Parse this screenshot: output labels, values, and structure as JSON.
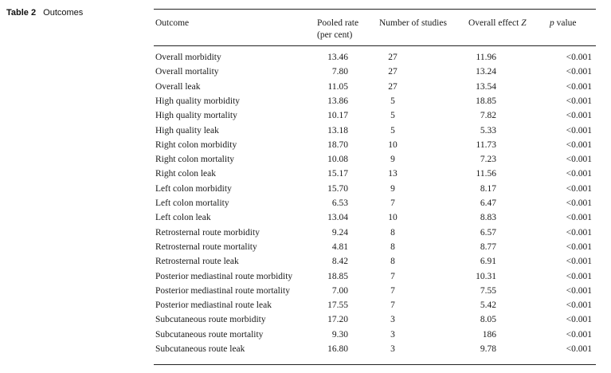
{
  "caption": {
    "label": "Table 2",
    "title": "Outcomes"
  },
  "headers": {
    "outcome": "Outcome",
    "pooled_line1": "Pooled rate",
    "pooled_line2": "(per cent)",
    "studies": "Number of studies",
    "effect_prefix": "Overall effect ",
    "effect_symbol": "Z",
    "p_symbol": "p",
    "p_suffix": " value"
  },
  "rows": [
    {
      "outcome": "Overall morbidity",
      "rate": "13.46",
      "studies": "27",
      "z": "11.96",
      "p": "<0.001"
    },
    {
      "outcome": "Overall mortality",
      "rate": "7.80",
      "studies": "27",
      "z": "13.24",
      "p": "<0.001"
    },
    {
      "outcome": "Overall leak",
      "rate": "11.05",
      "studies": "27",
      "z": "13.54",
      "p": "<0.001"
    },
    {
      "outcome": "High quality morbidity",
      "rate": "13.86",
      "studies": "5",
      "z": "18.85",
      "p": "<0.001"
    },
    {
      "outcome": "High quality mortality",
      "rate": "10.17",
      "studies": "5",
      "z": "7.82",
      "p": "<0.001"
    },
    {
      "outcome": "High quality leak",
      "rate": "13.18",
      "studies": "5",
      "z": "5.33",
      "p": "<0.001"
    },
    {
      "outcome": "Right colon morbidity",
      "rate": "18.70",
      "studies": "10",
      "z": "11.73",
      "p": "<0.001"
    },
    {
      "outcome": "Right colon mortality",
      "rate": "10.08",
      "studies": "9",
      "z": "7.23",
      "p": "<0.001"
    },
    {
      "outcome": "Right colon leak",
      "rate": "15.17",
      "studies": "13",
      "z": "11.56",
      "p": "<0.001"
    },
    {
      "outcome": "Left colon morbidity",
      "rate": "15.70",
      "studies": "9",
      "z": "8.17",
      "p": "<0.001"
    },
    {
      "outcome": "Left colon mortality",
      "rate": "6.53",
      "studies": "7",
      "z": "6.47",
      "p": "<0.001"
    },
    {
      "outcome": "Left colon leak",
      "rate": "13.04",
      "studies": "10",
      "z": "8.83",
      "p": "<0.001"
    },
    {
      "outcome": "Retrosternal route morbidity",
      "rate": "9.24",
      "studies": "8",
      "z": "6.57",
      "p": "<0.001"
    },
    {
      "outcome": "Retrosternal route mortality",
      "rate": "4.81",
      "studies": "8",
      "z": "8.77",
      "p": "<0.001"
    },
    {
      "outcome": "Retrosternal route leak",
      "rate": "8.42",
      "studies": "8",
      "z": "6.91",
      "p": "<0.001"
    },
    {
      "outcome": "Posterior mediastinal route morbidity",
      "rate": "18.85",
      "studies": "7",
      "z": "10.31",
      "p": "<0.001"
    },
    {
      "outcome": "Posterior mediastinal route mortality",
      "rate": "7.00",
      "studies": "7",
      "z": "7.55",
      "p": "<0.001"
    },
    {
      "outcome": "Posterior mediastinal route leak",
      "rate": "17.55",
      "studies": "7",
      "z": "5.42",
      "p": "<0.001"
    },
    {
      "outcome": "Subcutaneous route morbidity",
      "rate": "17.20",
      "studies": "3",
      "z": "8.05",
      "p": "<0.001"
    },
    {
      "outcome": "Subcutaneous route mortality",
      "rate": "9.30",
      "studies": "3",
      "z": "186",
      "p": "<0.001"
    },
    {
      "outcome": "Subcutaneous route leak",
      "rate": "16.80",
      "studies": "3",
      "z": "9.78",
      "p": "<0.001"
    }
  ]
}
